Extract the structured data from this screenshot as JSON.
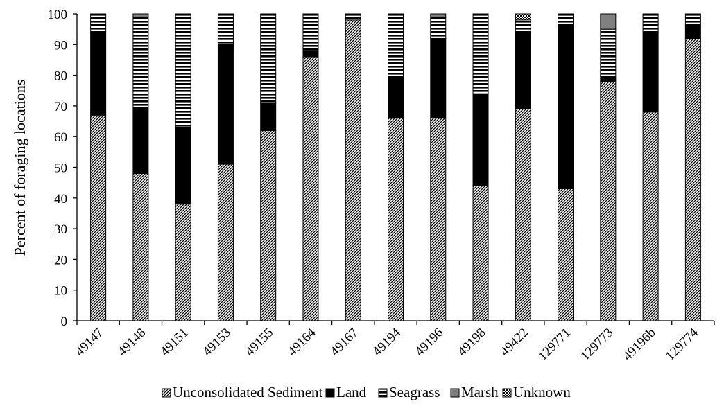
{
  "chart_data": {
    "type": "bar",
    "stacked": true,
    "title": "",
    "xlabel": "",
    "ylabel": "Percent of foraging locations",
    "ylim": [
      0,
      100
    ],
    "yticks": [
      0,
      10,
      20,
      30,
      40,
      50,
      60,
      70,
      80,
      90,
      100
    ],
    "grid": false,
    "legend_position": "bottom",
    "categories": [
      "49147",
      "49148",
      "49151",
      "49153",
      "49155",
      "49164",
      "49167",
      "49194",
      "49196",
      "49198",
      "49422",
      "129771",
      "129773",
      "49196b",
      "129774"
    ],
    "series": [
      {
        "name": "Unconsolidated Sediment",
        "pattern": "diagonal-hatch",
        "values": [
          67,
          48,
          38,
          51,
          62,
          86,
          98,
          66,
          66,
          44,
          69,
          43,
          78,
          68,
          92
        ]
      },
      {
        "name": "Land",
        "pattern": "solid",
        "color": "#000000",
        "values": [
          27,
          21,
          25,
          39,
          9,
          2,
          0,
          13,
          26,
          30,
          25,
          53,
          1,
          26,
          4
        ]
      },
      {
        "name": "Seagrass",
        "pattern": "horizontal-stripes",
        "values": [
          6,
          30,
          37,
          10,
          29,
          12,
          2,
          21,
          7,
          26,
          4,
          4,
          16,
          6,
          4
        ]
      },
      {
        "name": "Marsh",
        "pattern": "solid",
        "color": "#808080",
        "values": [
          0,
          1,
          0,
          0,
          0,
          0,
          0,
          0,
          1,
          0,
          0,
          0,
          5,
          0,
          0
        ]
      },
      {
        "name": "Unknown",
        "pattern": "checker",
        "values": [
          0,
          0,
          0,
          0,
          0,
          0,
          0,
          0,
          0,
          0,
          2,
          0,
          0,
          0,
          0
        ]
      }
    ]
  }
}
